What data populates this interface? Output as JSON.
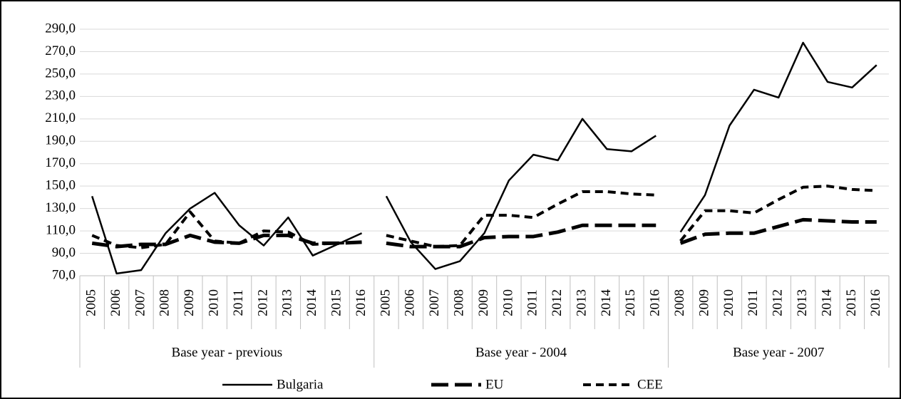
{
  "chart_data": {
    "type": "line",
    "groups": [
      {
        "label": "Base year - previous",
        "categories": [
          "2005",
          "2006",
          "2007",
          "2008",
          "2009",
          "2010",
          "2011",
          "2012",
          "2013",
          "2014",
          "2015",
          "2016"
        ]
      },
      {
        "label": "Base year - 2004",
        "categories": [
          "2005",
          "2006",
          "2007",
          "2008",
          "2009",
          "2010",
          "2011",
          "2012",
          "2013",
          "2014",
          "2015",
          "2016"
        ]
      },
      {
        "label": "Base year - 2007",
        "categories": [
          "2008",
          "2009",
          "2010",
          "2011",
          "2012",
          "2013",
          "2014",
          "2015",
          "2016"
        ]
      }
    ],
    "series": [
      {
        "name": "Bulgaria",
        "color": "#000000",
        "style": "solid",
        "values": [
          [
            141,
            72,
            75,
            108,
            130,
            144,
            115,
            97,
            122,
            88,
            98,
            108
          ],
          [
            141,
            100,
            76,
            83,
            108,
            155,
            178,
            173,
            210,
            183,
            181,
            195
          ],
          [
            109,
            142,
            204,
            236,
            229,
            278,
            243,
            238,
            258
          ]
        ]
      },
      {
        "name": "EU",
        "color": "#000000",
        "style": "long-dash",
        "values": [
          [
            99,
            96,
            98,
            98,
            106,
            100,
            99,
            106,
            106,
            99,
            99,
            100
          ],
          [
            99,
            96,
            96,
            96,
            104,
            105,
            105,
            109,
            115,
            115,
            115,
            115
          ],
          [
            99,
            107,
            108,
            108,
            114,
            120,
            119,
            118,
            118
          ]
        ]
      },
      {
        "name": "CEE",
        "color": "#000000",
        "style": "dash",
        "values": [
          [
            106,
            97,
            95,
            98,
            127,
            101,
            99,
            110,
            109,
            98,
            99,
            100
          ],
          [
            106,
            101,
            96,
            97,
            124,
            124,
            122,
            134,
            145,
            145,
            143,
            142
          ],
          [
            101,
            128,
            128,
            126,
            138,
            149,
            150,
            147,
            146
          ]
        ]
      }
    ],
    "ylim": [
      70,
      290
    ],
    "yticks": [
      {
        "value": 70,
        "label": "70,0"
      },
      {
        "value": 90,
        "label": "90,0"
      },
      {
        "value": 110,
        "label": "110,0"
      },
      {
        "value": 130,
        "label": "130,0"
      },
      {
        "value": 150,
        "label": "150,0"
      },
      {
        "value": 170,
        "label": "170,0"
      },
      {
        "value": 190,
        "label": "190,0"
      },
      {
        "value": 210,
        "label": "210,0"
      },
      {
        "value": 230,
        "label": "230,0"
      },
      {
        "value": 250,
        "label": "250,0"
      },
      {
        "value": 270,
        "label": "270,0"
      },
      {
        "value": 290,
        "label": "290,0"
      }
    ],
    "grid": true,
    "legend": "bottom"
  }
}
